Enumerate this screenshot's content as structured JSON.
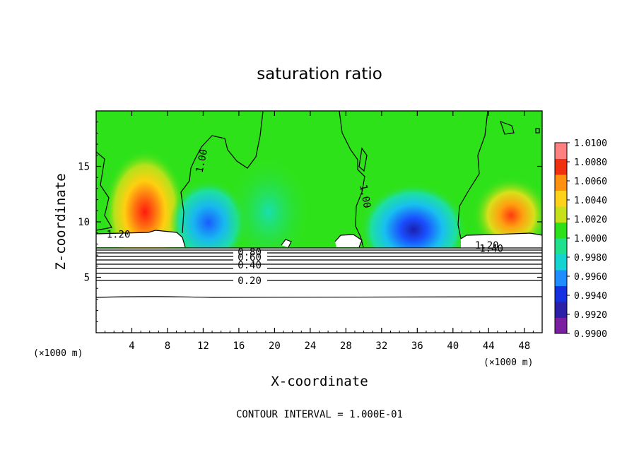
{
  "chart_data": {
    "type": "heatmap",
    "title": "saturation ratio",
    "xlabel": "X-coordinate",
    "ylabel": "Z-coordinate",
    "x_unit": "(×1000 m)",
    "y_unit": "(×1000 m)",
    "xlim": [
      0,
      50
    ],
    "ylim": [
      0,
      20
    ],
    "x_ticks": [
      "4",
      "8",
      "12",
      "16",
      "20",
      "24",
      "28",
      "32",
      "36",
      "40",
      "44",
      "48"
    ],
    "y_ticks": [
      "5",
      "10",
      "15"
    ],
    "colorbar": {
      "min": 0.99,
      "max": 1.01,
      "labels": [
        "1.0100",
        "1.0080",
        "1.0060",
        "1.0040",
        "1.0020",
        "1.0000",
        "0.9980",
        "0.9960",
        "0.9940",
        "0.9920",
        "0.9900"
      ],
      "colors": [
        "#7a1fa0",
        "#2c1fa8",
        "#1530e0",
        "#1f8cff",
        "#14d4d2",
        "#1fe08c",
        "#2ee01a",
        "#c6e01a",
        "#ffd21a",
        "#ff9010",
        "#f03010",
        "#ff8080"
      ]
    },
    "contour_labels": [
      {
        "text": "1.00",
        "x": 11.8,
        "z": 15.5
      },
      {
        "text": "1.00",
        "x": 30.2,
        "z": 12.3
      },
      {
        "text": "1.20",
        "x": 2.5,
        "z": 8.9
      },
      {
        "text": "1.20",
        "x": 43.8,
        "z": 7.9
      },
      {
        "text": "1.40",
        "x": 44.3,
        "z": 7.6
      },
      {
        "text": "0.80",
        "x": 17.2,
        "z": 7.3
      },
      {
        "text": "0.60",
        "x": 17.2,
        "z": 6.8
      },
      {
        "text": "0.40",
        "x": 17.2,
        "z": 6.1
      },
      {
        "text": "0.20",
        "x": 17.2,
        "z": 4.7
      }
    ],
    "contour_interval_text": "CONTOUR INTERVAL = 1.000E-01"
  }
}
